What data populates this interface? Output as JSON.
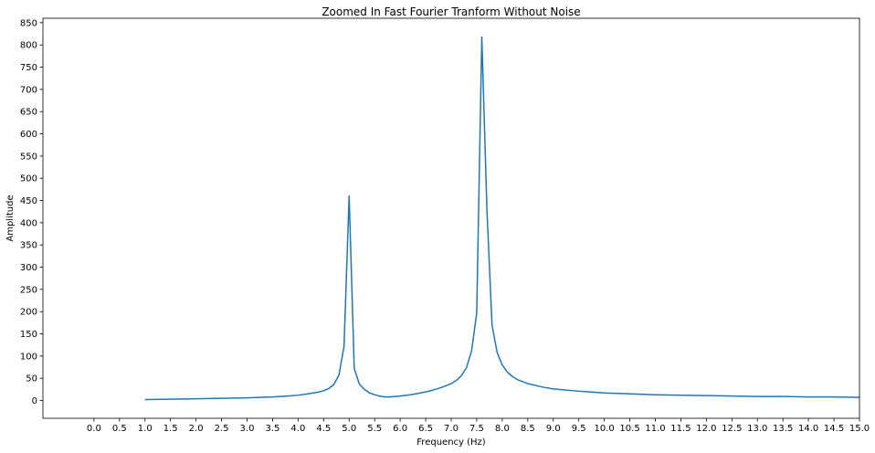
{
  "chart_data": {
    "type": "line",
    "title": "Zoomed In Fast Fourier Tranform Without Noise",
    "xlabel": "Frequency (Hz)",
    "ylabel": "Amplitude",
    "xlim": [
      -1.0,
      15.0
    ],
    "ylim": [
      -40,
      860
    ],
    "xticks": [
      0.0,
      0.5,
      1.0,
      1.5,
      2.0,
      2.5,
      3.0,
      3.5,
      4.0,
      4.5,
      5.0,
      5.5,
      6.0,
      6.5,
      7.0,
      7.5,
      8.0,
      8.5,
      9.0,
      9.5,
      10.0,
      10.5,
      11.0,
      11.5,
      12.0,
      12.5,
      13.0,
      13.5,
      14.0,
      14.5,
      15.0
    ],
    "yticks": [
      0,
      50,
      100,
      150,
      200,
      250,
      300,
      350,
      400,
      450,
      500,
      550,
      600,
      650,
      700,
      750,
      800,
      850
    ],
    "grid": false,
    "color": "#1f77b4",
    "series": [
      {
        "x": [
          1.0,
          1.5,
          2.0,
          2.5,
          3.0,
          3.5,
          3.8,
          4.0,
          4.2,
          4.4,
          4.5,
          4.6,
          4.7,
          4.8,
          4.9,
          5.0,
          5.1,
          5.2,
          5.3,
          5.4,
          5.5,
          5.6,
          5.7,
          5.8,
          5.9,
          6.0,
          6.2,
          6.4,
          6.6,
          6.8,
          7.0,
          7.1,
          7.2,
          7.3,
          7.4,
          7.5,
          7.6,
          7.7,
          7.8,
          7.9,
          8.0,
          8.1,
          8.2,
          8.3,
          8.5,
          8.8,
          9.0,
          9.5,
          10.0,
          10.5,
          11.0,
          11.5,
          12.0,
          12.5,
          13.0,
          13.5,
          14.0,
          14.5,
          15.0
        ],
        "values": [
          2,
          3,
          4,
          5,
          6,
          8,
          10,
          12,
          15,
          19,
          22,
          27,
          36,
          57,
          122,
          460,
          72,
          37,
          25,
          17,
          13,
          10,
          8,
          8,
          9,
          10,
          13,
          17,
          22,
          29,
          38,
          45,
          56,
          74,
          112,
          197,
          818,
          430,
          170,
          108,
          80,
          64,
          54,
          47,
          38,
          30,
          26,
          21,
          17,
          15,
          13,
          12,
          11,
          10,
          9,
          9,
          8,
          8,
          7
        ]
      }
    ]
  }
}
